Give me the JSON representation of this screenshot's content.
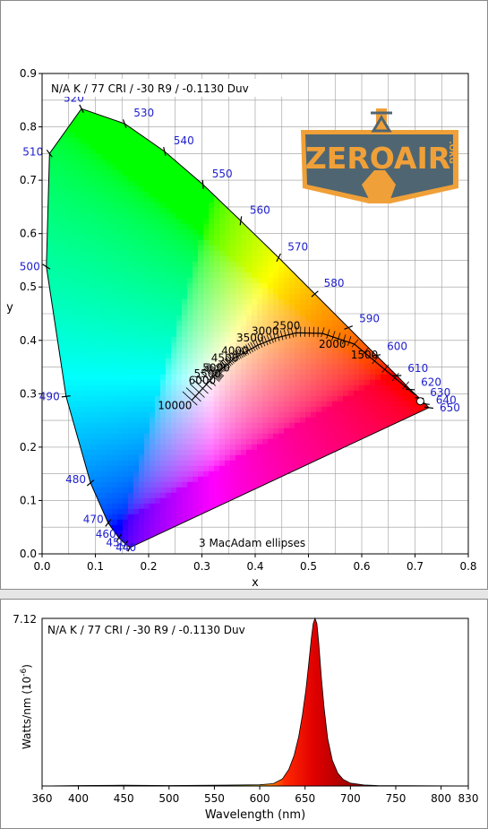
{
  "cie_panel": {
    "header": "N/A K / 77 CRI / -30 R9 / -0.1130 Duv",
    "footer": "3  MacAdam ellipses",
    "logo_text": "ZEROAIR",
    "logo_tag": ".ORG"
  },
  "spd_panel": {
    "header": "N/A K / 77 CRI / -30 R9 / -0.1130 Duv"
  },
  "colors": {
    "wavelength_label": "#1d1dcf",
    "logo_orange": "#f0a038",
    "logo_slate": "#4f6672",
    "peak_red": "#ff1a00"
  },
  "chart_data": [
    {
      "type": "scatter",
      "title": "",
      "xlabel": "x",
      "ylabel": "y",
      "xlim": [
        0.0,
        0.8
      ],
      "ylim": [
        0.0,
        0.9
      ],
      "x_ticks": [
        "0.0",
        "0.1",
        "0.2",
        "0.3",
        "0.4",
        "0.5",
        "0.6",
        "0.7",
        "0.8"
      ],
      "y_ticks": [
        "0.0",
        "0.1",
        "0.2",
        "0.3",
        "0.4",
        "0.5",
        "0.6",
        "0.7",
        "0.8",
        "0.9"
      ],
      "grid": true,
      "wavelength_labels": [
        {
          "nm": "440",
          "x": 0.165,
          "y": 0.012
        },
        {
          "nm": "450",
          "x": 0.157,
          "y": 0.018
        },
        {
          "nm": "460",
          "x": 0.144,
          "y": 0.03
        },
        {
          "nm": "470",
          "x": 0.124,
          "y": 0.058
        },
        {
          "nm": "480",
          "x": 0.091,
          "y": 0.133
        },
        {
          "nm": "490",
          "x": 0.045,
          "y": 0.295
        },
        {
          "nm": "500",
          "x": 0.008,
          "y": 0.538
        },
        {
          "nm": "510",
          "x": 0.014,
          "y": 0.75
        },
        {
          "nm": "520",
          "x": 0.074,
          "y": 0.834
        },
        {
          "nm": "530",
          "x": 0.155,
          "y": 0.806
        },
        {
          "nm": "540",
          "x": 0.23,
          "y": 0.754
        },
        {
          "nm": "550",
          "x": 0.302,
          "y": 0.692
        },
        {
          "nm": "560",
          "x": 0.373,
          "y": 0.624
        },
        {
          "nm": "570",
          "x": 0.444,
          "y": 0.555
        },
        {
          "nm": "580",
          "x": 0.512,
          "y": 0.487
        },
        {
          "nm": "590",
          "x": 0.575,
          "y": 0.424
        },
        {
          "nm": "600",
          "x": 0.627,
          "y": 0.372
        },
        {
          "nm": "610",
          "x": 0.666,
          "y": 0.334
        },
        {
          "nm": "620",
          "x": 0.691,
          "y": 0.308
        },
        {
          "nm": "630",
          "x": 0.708,
          "y": 0.292
        },
        {
          "nm": "640",
          "x": 0.719,
          "y": 0.281
        },
        {
          "nm": "650",
          "x": 0.726,
          "y": 0.274
        }
      ],
      "cct_labels": [
        {
          "cct": "10000",
          "x": 0.281,
          "y": 0.288
        },
        {
          "cct": "6000",
          "x": 0.322,
          "y": 0.332
        },
        {
          "cct": "5500",
          "x": 0.332,
          "y": 0.344
        },
        {
          "cct": "5000",
          "x": 0.345,
          "y": 0.352
        },
        {
          "cct": "4500",
          "x": 0.361,
          "y": 0.367
        },
        {
          "cct": "4000",
          "x": 0.38,
          "y": 0.377
        },
        {
          "cct": "3500",
          "x": 0.405,
          "y": 0.391
        },
        {
          "cct": "3000",
          "x": 0.437,
          "y": 0.404
        },
        {
          "cct": "2500",
          "x": 0.477,
          "y": 0.414
        },
        {
          "cct": "2000",
          "x": 0.526,
          "y": 0.413
        },
        {
          "cct": "1500",
          "x": 0.586,
          "y": 0.393
        }
      ],
      "measured_point": {
        "x": 0.71,
        "y": 0.286
      }
    },
    {
      "type": "area",
      "title": "",
      "xlabel": "Wavelength (nm)",
      "ylabel": "Watts/nm (10",
      "ylabel_exp": "-6",
      "ylabel_tail": ")",
      "xlim": [
        360,
        830
      ],
      "ylim": [
        0,
        7.12
      ],
      "y_max_label": "7.12",
      "x_ticks": [
        "360",
        "400",
        "450",
        "500",
        "550",
        "600",
        "650",
        "700",
        "750",
        "800",
        "830"
      ],
      "x": [
        360,
        400,
        450,
        500,
        550,
        600,
        615,
        625,
        632,
        638,
        643,
        647,
        651,
        654,
        657,
        659,
        661,
        663,
        665,
        668,
        671,
        675,
        680,
        686,
        692,
        700,
        715,
        730,
        760,
        830
      ],
      "values": [
        0.0,
        0.02,
        0.03,
        0.02,
        0.03,
        0.05,
        0.1,
        0.3,
        0.7,
        1.3,
        2.1,
        3.0,
        4.1,
        5.2,
        6.3,
        6.9,
        7.12,
        6.9,
        6.1,
        4.6,
        3.3,
        2.0,
        1.1,
        0.55,
        0.28,
        0.12,
        0.04,
        0.02,
        0.01,
        0.0
      ]
    }
  ]
}
